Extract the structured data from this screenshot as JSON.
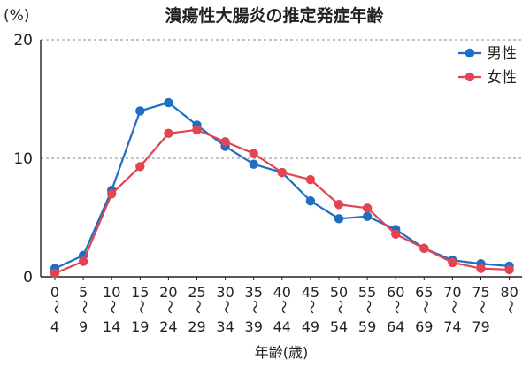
{
  "chart_data": {
    "type": "line",
    "title": "潰瘍性大腸炎の推定発症年齢",
    "ylabel": "(%)",
    "xlabel": "年齢(歳)",
    "ylim": [
      0,
      20
    ],
    "yticks": [
      "0",
      "10",
      "20"
    ],
    "grid": true,
    "legend_position": "top-right",
    "categories": [
      {
        "top": "0",
        "sep": "～",
        "bottom": "4"
      },
      {
        "top": "5",
        "sep": "～",
        "bottom": "9"
      },
      {
        "top": "10",
        "sep": "～",
        "bottom": "14"
      },
      {
        "top": "15",
        "sep": "～",
        "bottom": "19"
      },
      {
        "top": "20",
        "sep": "～",
        "bottom": "24"
      },
      {
        "top": "25",
        "sep": "～",
        "bottom": "29"
      },
      {
        "top": "30",
        "sep": "～",
        "bottom": "34"
      },
      {
        "top": "35",
        "sep": "～",
        "bottom": "39"
      },
      {
        "top": "40",
        "sep": "～",
        "bottom": "44"
      },
      {
        "top": "45",
        "sep": "～",
        "bottom": "49"
      },
      {
        "top": "50",
        "sep": "～",
        "bottom": "54"
      },
      {
        "top": "55",
        "sep": "～",
        "bottom": "59"
      },
      {
        "top": "60",
        "sep": "～",
        "bottom": "64"
      },
      {
        "top": "65",
        "sep": "～",
        "bottom": "69"
      },
      {
        "top": "70",
        "sep": "～",
        "bottom": "74"
      },
      {
        "top": "75",
        "sep": "～",
        "bottom": "79"
      },
      {
        "top": "80",
        "sep": "～",
        "bottom": ""
      }
    ],
    "series": [
      {
        "name": "男性",
        "color": "#1f6fc0",
        "values": [
          0.7,
          1.8,
          7.3,
          14.0,
          14.7,
          12.8,
          11.0,
          9.5,
          8.8,
          6.4,
          4.9,
          5.1,
          4.0,
          2.4,
          1.4,
          1.1,
          0.9
        ]
      },
      {
        "name": "女性",
        "color": "#e34450",
        "values": [
          0.3,
          1.3,
          7.0,
          9.3,
          12.1,
          12.4,
          11.4,
          10.4,
          8.8,
          8.2,
          6.1,
          5.8,
          3.6,
          2.4,
          1.2,
          0.7,
          0.6
        ]
      }
    ]
  }
}
